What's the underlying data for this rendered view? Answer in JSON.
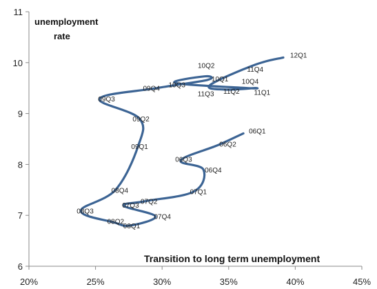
{
  "chart_data": {
    "type": "line",
    "title": "",
    "xlabel": "Transition to long term unemployment",
    "ylabel_lines": [
      "unemployment",
      "rate"
    ],
    "xlim": [
      20,
      45
    ],
    "ylim": [
      6,
      11
    ],
    "x_ticks": [
      20,
      25,
      30,
      35,
      40,
      45
    ],
    "x_tick_labels": [
      "20%",
      "25%",
      "30%",
      "35%",
      "40%",
      "45%"
    ],
    "y_ticks": [
      6,
      7,
      8,
      9,
      10,
      11
    ],
    "y_tick_labels": [
      "6",
      "7",
      "8",
      "9",
      "10",
      "11"
    ],
    "grid": false,
    "line_color": "#3c6494",
    "series": [
      {
        "points": [
          {
            "label": "06Q1",
            "x": 36.1,
            "y": 8.61
          },
          {
            "label": "06Q2",
            "x": 34.2,
            "y": 8.38
          },
          {
            "label": "06Q3",
            "x": 31.4,
            "y": 8.08
          },
          {
            "label": "06Q4",
            "x": 33.1,
            "y": 7.9
          },
          {
            "label": "07Q1",
            "x": 32.4,
            "y": 7.47
          },
          {
            "label": "07Q2",
            "x": 28.8,
            "y": 7.28
          },
          {
            "label": "07Q3",
            "x": 27.1,
            "y": 7.19
          },
          {
            "label": "07Q4",
            "x": 29.5,
            "y": 6.98
          },
          {
            "label": "08Q1",
            "x": 27.6,
            "y": 6.8
          },
          {
            "label": "08Q2",
            "x": 26.4,
            "y": 6.86
          },
          {
            "label": "08Q3",
            "x": 23.9,
            "y": 7.09
          },
          {
            "label": "08Q4",
            "x": 26.5,
            "y": 7.5
          },
          {
            "label": "09Q1",
            "x": 28.2,
            "y": 8.36
          },
          {
            "label": "09Q2",
            "x": 28.3,
            "y": 8.9
          },
          {
            "label": "09Q3",
            "x": 25.3,
            "y": 9.29
          },
          {
            "label": "09Q4",
            "x": 29.6,
            "y": 9.5
          },
          {
            "label": "10Q1",
            "x": 33.4,
            "y": 9.66
          },
          {
            "label": "10Q2",
            "x": 33.2,
            "y": 9.73
          },
          {
            "label": "10Q3",
            "x": 31.0,
            "y": 9.6
          },
          {
            "label": "10Q4",
            "x": 36.4,
            "y": 9.5
          },
          {
            "label": "11Q1",
            "x": 36.9,
            "y": 9.5
          },
          {
            "label": "11Q2",
            "x": 34.7,
            "y": 9.47
          },
          {
            "label": "11Q3",
            "x": 33.6,
            "y": 9.56
          },
          {
            "label": "11Q4",
            "x": 37.0,
            "y": 9.96
          },
          {
            "label": "12Q1",
            "x": 39.1,
            "y": 10.1
          }
        ]
      }
    ]
  }
}
